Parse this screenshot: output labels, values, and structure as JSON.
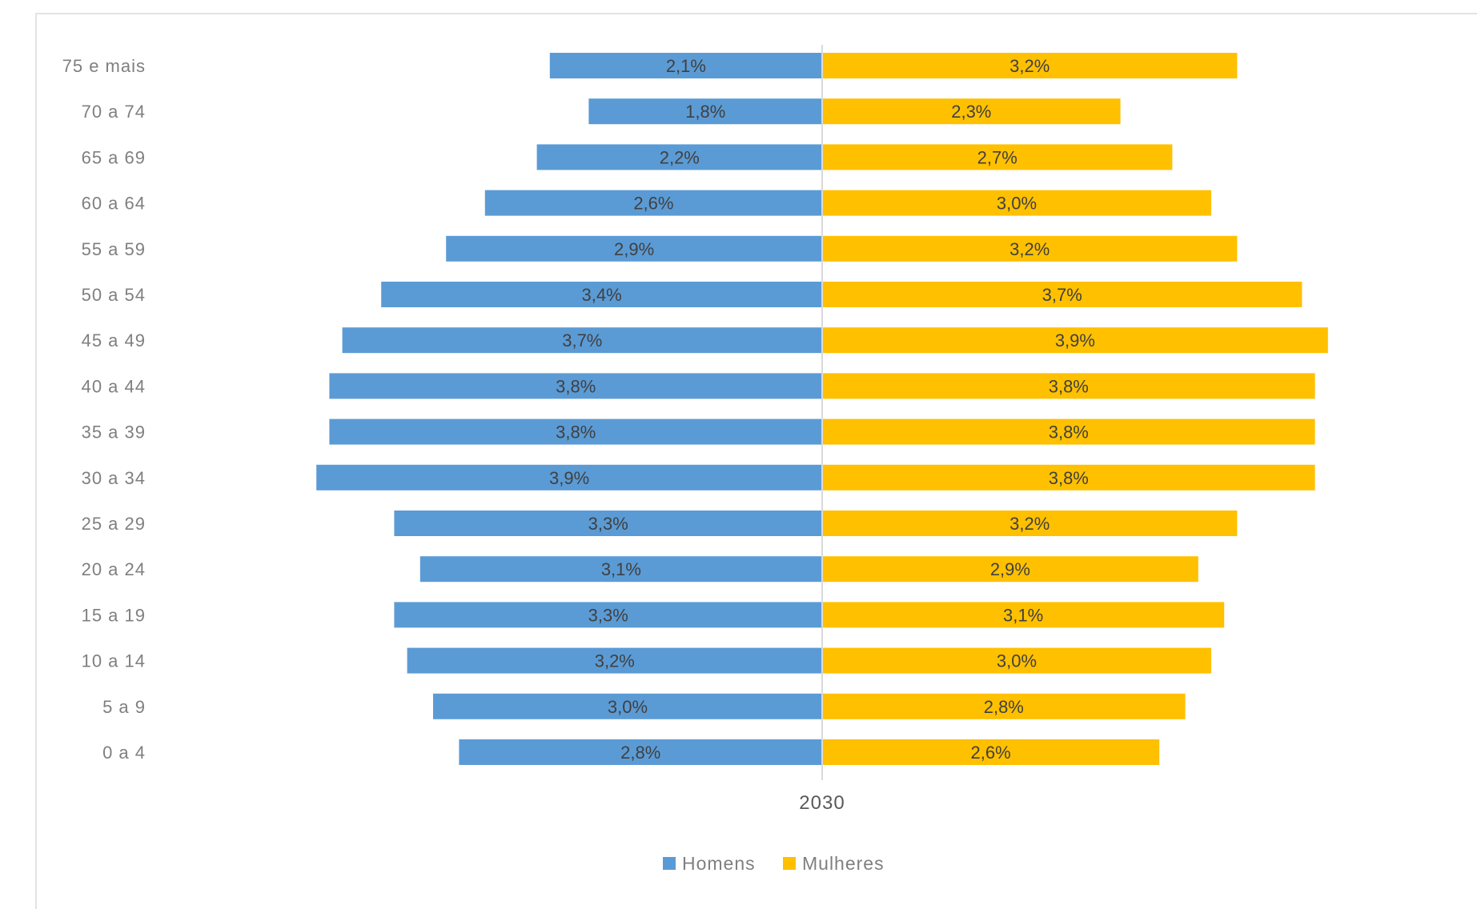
{
  "chart_data": {
    "type": "bar",
    "orientation": "horizontal",
    "layout": "population-pyramid",
    "categories": [
      "75 e mais",
      "70 a 74",
      "65 a 69",
      "60 a 64",
      "55 a 59",
      "50 a 54",
      "45 a 49",
      "40 a 44",
      "35 a 39",
      "30 a 34",
      "25 a 29",
      "20 a 24",
      "15 a 19",
      "10 a 14",
      "5 a 9",
      "0 a 4"
    ],
    "series": [
      {
        "name": "Homens",
        "color": "#5b9bd5",
        "values": [
          2.1,
          1.8,
          2.2,
          2.6,
          2.9,
          3.4,
          3.7,
          3.8,
          3.8,
          3.9,
          3.3,
          3.1,
          3.3,
          3.2,
          3.0,
          2.8
        ],
        "labels": [
          "2,1%",
          "1,8%",
          "2,2%",
          "2,6%",
          "2,9%",
          "3,4%",
          "3,7%",
          "3,8%",
          "3,8%",
          "3,9%",
          "3,3%",
          "3,1%",
          "3,3%",
          "3,2%",
          "3,0%",
          "2,8%"
        ]
      },
      {
        "name": "Mulheres",
        "color": "#ffc000",
        "values": [
          3.2,
          2.3,
          2.7,
          3.0,
          3.2,
          3.7,
          3.9,
          3.8,
          3.8,
          3.8,
          3.2,
          2.9,
          3.1,
          3.0,
          2.8,
          2.6
        ],
        "labels": [
          "3,2%",
          "2,3%",
          "2,7%",
          "3,0%",
          "3,2%",
          "3,7%",
          "3,9%",
          "3,8%",
          "3,8%",
          "3,8%",
          "3,2%",
          "2,9%",
          "3,1%",
          "3,0%",
          "2,8%",
          "2,6%"
        ]
      }
    ],
    "xlabel": "2030",
    "ylabel": "",
    "xlim": [
      -4.0,
      4.0
    ],
    "grid": false,
    "legend_position": "bottom"
  }
}
